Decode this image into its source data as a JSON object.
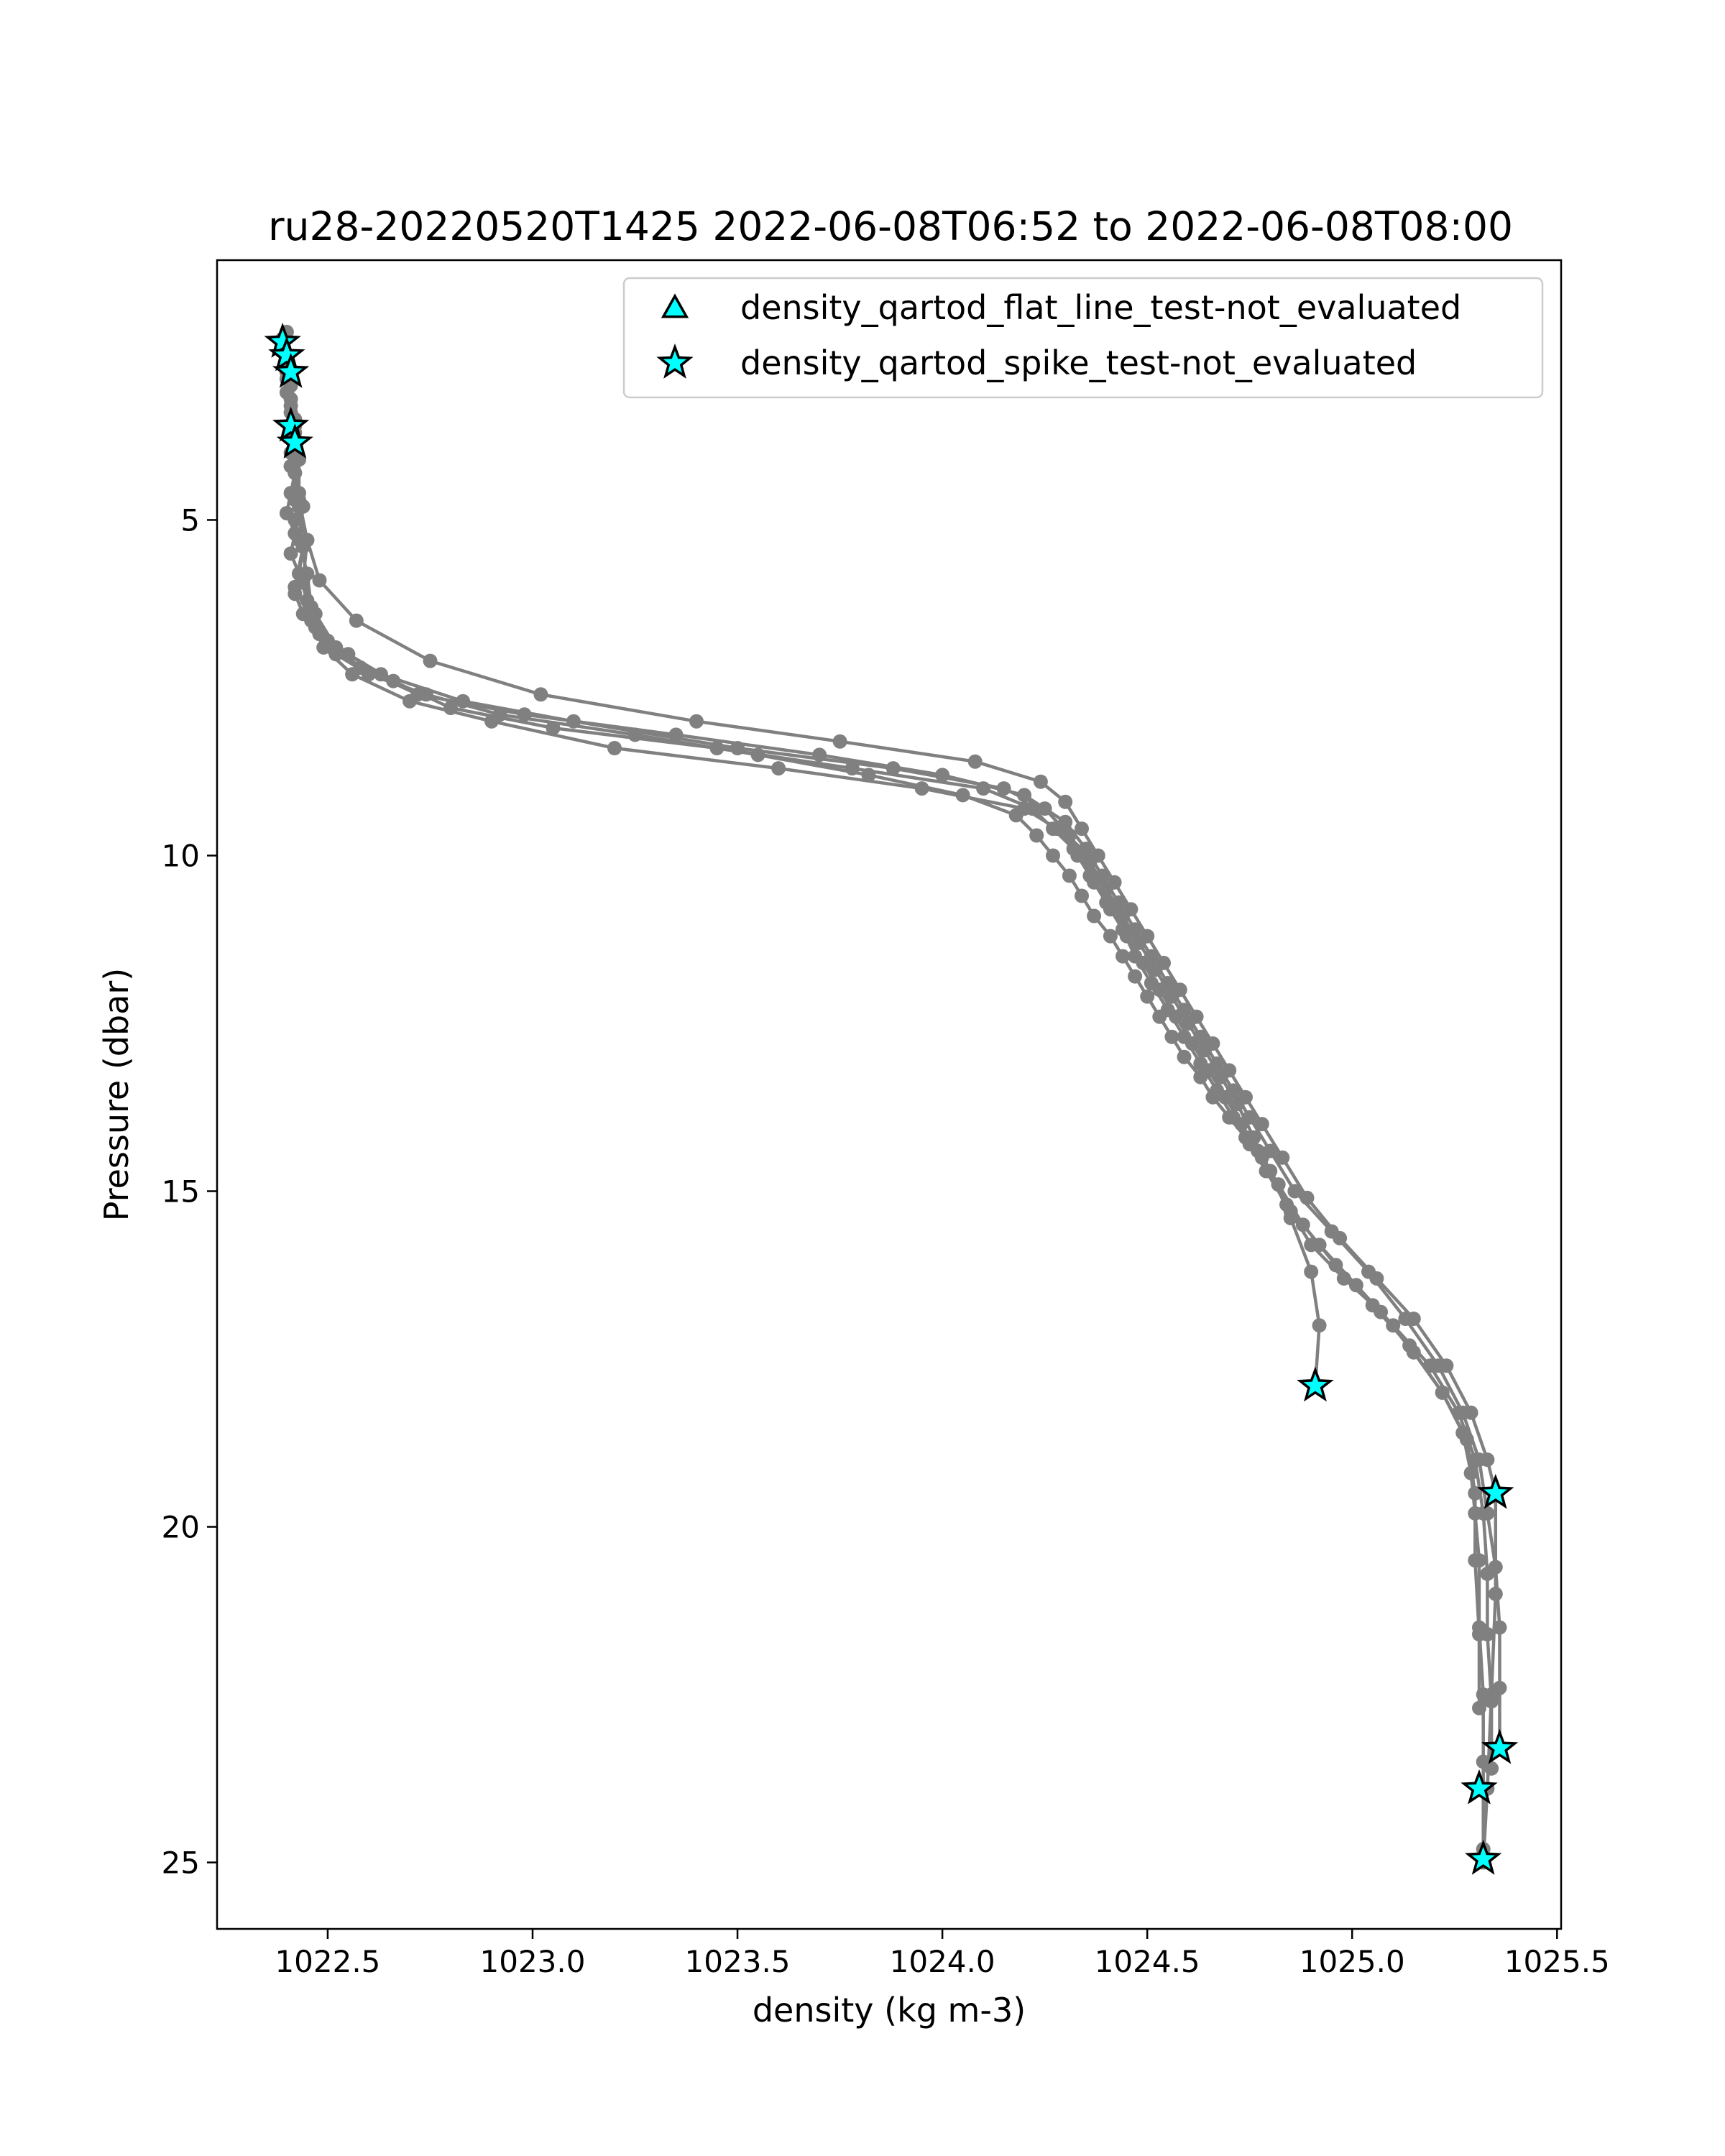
{
  "chart_data": {
    "type": "scatter",
    "title": "ru28-20220520T1425 2022-06-08T06:52 to 2022-06-08T08:00",
    "xlabel": "density (kg m-3)",
    "ylabel": "Pressure (dbar)",
    "xlim": [
      1022.23,
      1025.51
    ],
    "ylim": [
      25.99,
      1.13
    ],
    "y_inverted": true,
    "xticks": [
      1022.5,
      1023.0,
      1023.5,
      1024.0,
      1024.5,
      1025.0,
      1025.5
    ],
    "xtick_labels": [
      "1022.5",
      "1023.0",
      "1023.5",
      "1024.0",
      "1024.5",
      "1025.0",
      "1025.5"
    ],
    "yticks": [
      5,
      10,
      15,
      20,
      25
    ],
    "ytick_labels": [
      "5",
      "10",
      "15",
      "20",
      "25"
    ],
    "grid": false,
    "legend_position": "top-right",
    "profile_color": "#808080",
    "marker_fill": "#00ffff",
    "marker_edge": "#000000",
    "profiles": [
      {
        "x": [
          1022.39,
          1022.4,
          1022.4,
          1022.41,
          1022.41,
          1022.41,
          1022.42,
          1022.41,
          1022.4,
          1022.42,
          1022.41,
          1022.43,
          1022.42,
          1022.44,
          1022.48,
          1022.52,
          1022.6,
          1022.74,
          1022.92,
          1023.25,
          1023.55,
          1023.82,
          1024.05,
          1024.18,
          1024.23,
          1024.27,
          1024.31,
          1024.34,
          1024.37,
          1024.41,
          1024.44,
          1024.47,
          1024.5,
          1024.53,
          1024.56,
          1024.59,
          1024.63,
          1024.66,
          1024.7,
          1024.74,
          1024.78,
          1024.82,
          1024.85,
          1024.9,
          1024.98,
          1025.07,
          1025.15,
          1025.22,
          1025.27,
          1025.29,
          1025.3,
          1025.31,
          1025.31,
          1025.32,
          1025.32,
          1025.32
        ],
        "y": [
          2.4,
          2.8,
          3.1,
          3.4,
          3.7,
          4.0,
          4.3,
          4.6,
          4.9,
          5.2,
          5.5,
          5.8,
          6.1,
          6.4,
          6.7,
          7.0,
          7.3,
          7.6,
          7.9,
          8.2,
          8.5,
          8.8,
          9.1,
          9.4,
          9.7,
          10.0,
          10.3,
          10.6,
          10.9,
          11.2,
          11.5,
          11.8,
          12.1,
          12.4,
          12.7,
          13.0,
          13.3,
          13.6,
          13.9,
          14.2,
          14.5,
          14.9,
          15.3,
          15.8,
          16.3,
          16.8,
          17.4,
          18.0,
          18.6,
          19.2,
          19.8,
          20.5,
          21.5,
          22.5,
          23.5,
          24.8
        ]
      },
      {
        "x": [
          1022.39,
          1022.4,
          1022.41,
          1022.42,
          1022.41,
          1022.43,
          1022.42,
          1022.44,
          1022.43,
          1022.45,
          1022.47,
          1022.55,
          1022.66,
          1022.8,
          1023.05,
          1023.45,
          1023.78,
          1024.1,
          1024.22,
          1024.27,
          1024.32,
          1024.36,
          1024.4,
          1024.44,
          1024.47,
          1024.51,
          1024.55,
          1024.59,
          1024.63,
          1024.67,
          1024.71,
          1024.75,
          1024.79,
          1024.84,
          1024.92,
          1025.01,
          1025.1,
          1025.19,
          1025.26,
          1025.3,
          1025.32,
          1025.33,
          1025.33,
          1025.34,
          1025.34
        ],
        "y": [
          2.3,
          2.9,
          3.3,
          3.8,
          4.2,
          4.6,
          5.0,
          5.4,
          5.8,
          6.2,
          6.6,
          7.0,
          7.4,
          7.8,
          8.1,
          8.4,
          8.7,
          9.0,
          9.3,
          9.6,
          9.9,
          10.3,
          10.7,
          11.1,
          11.5,
          11.9,
          12.3,
          12.7,
          13.1,
          13.5,
          13.9,
          14.3,
          14.7,
          15.2,
          15.8,
          16.4,
          17.0,
          17.6,
          18.3,
          19.0,
          19.8,
          20.7,
          21.6,
          22.6,
          23.6
        ]
      },
      {
        "x": [
          1022.4,
          1022.41,
          1022.42,
          1022.42,
          1022.44,
          1022.43,
          1022.45,
          1022.46,
          1022.5,
          1022.58,
          1022.72,
          1022.98,
          1023.35,
          1023.7,
          1024.0,
          1024.2,
          1024.3,
          1024.35,
          1024.39,
          1024.43,
          1024.47,
          1024.51,
          1024.55,
          1024.59,
          1024.63,
          1024.67,
          1024.71,
          1024.75,
          1024.8,
          1024.86,
          1024.95,
          1025.04,
          1025.13,
          1025.21,
          1025.27,
          1025.31,
          1025.33,
          1025.35,
          1025.36,
          1025.36,
          1025.36
        ],
        "y": [
          2.6,
          3.2,
          3.7,
          4.3,
          4.8,
          5.3,
          5.8,
          6.3,
          6.8,
          7.2,
          7.6,
          7.9,
          8.2,
          8.5,
          8.8,
          9.1,
          9.5,
          9.9,
          10.3,
          10.7,
          11.1,
          11.5,
          11.9,
          12.3,
          12.7,
          13.1,
          13.5,
          13.9,
          14.4,
          15.0,
          15.6,
          16.2,
          16.9,
          17.6,
          18.3,
          19.0,
          19.8,
          20.6,
          21.5,
          22.4,
          23.3
        ]
      },
      {
        "x": [
          1022.41,
          1022.42,
          1022.41,
          1022.43,
          1022.44,
          1022.42,
          1022.46,
          1022.49,
          1022.56,
          1022.7,
          1022.9,
          1023.2,
          1023.6,
          1023.95,
          1024.2,
          1024.28,
          1024.33,
          1024.37,
          1024.41,
          1024.45,
          1024.49,
          1024.53,
          1024.57,
          1024.61,
          1024.65,
          1024.69,
          1024.73,
          1024.77,
          1024.82,
          1024.88,
          1024.96,
          1025.05,
          1025.14,
          1025.22,
          1025.28,
          1025.3,
          1025.3,
          1025.31,
          1025.31
        ],
        "y": [
          3.0,
          3.6,
          4.2,
          4.8,
          5.4,
          6.0,
          6.5,
          6.9,
          7.3,
          7.7,
          8.0,
          8.4,
          8.7,
          9.0,
          9.3,
          9.6,
          10.0,
          10.4,
          10.8,
          11.2,
          11.6,
          12.0,
          12.4,
          12.8,
          13.2,
          13.6,
          14.0,
          14.4,
          14.9,
          15.5,
          16.1,
          16.7,
          17.3,
          18.0,
          18.7,
          19.5,
          20.5,
          21.6,
          22.7
        ]
      },
      {
        "x": [
          1022.42,
          1022.43,
          1022.42,
          1022.45,
          1022.44,
          1022.47,
          1022.52,
          1022.63,
          1022.83,
          1023.1,
          1023.5,
          1023.88,
          1024.15,
          1024.25,
          1024.31,
          1024.36,
          1024.4,
          1024.44,
          1024.48,
          1024.52,
          1024.56,
          1024.6,
          1024.64,
          1024.68,
          1024.72,
          1024.76,
          1024.8,
          1024.85,
          1024.9,
          1024.92,
          1024.91
        ],
        "y": [
          3.5,
          4.1,
          4.7,
          5.3,
          5.9,
          6.4,
          6.9,
          7.3,
          7.7,
          8.0,
          8.4,
          8.7,
          9.0,
          9.3,
          9.7,
          10.1,
          10.5,
          10.9,
          11.3,
          11.7,
          12.1,
          12.5,
          12.9,
          13.3,
          13.7,
          14.2,
          14.7,
          15.4,
          16.2,
          17.0,
          17.9
        ]
      },
      {
        "x": [
          1022.4,
          1022.41,
          1022.42,
          1022.43,
          1022.43,
          1022.45,
          1022.48,
          1022.57,
          1022.75,
          1023.02,
          1023.4,
          1023.75,
          1024.08,
          1024.24,
          1024.3,
          1024.34,
          1024.38,
          1024.42,
          1024.46,
          1024.5,
          1024.54,
          1024.58,
          1024.62,
          1024.66,
          1024.7,
          1024.74,
          1024.78,
          1024.83,
          1024.89,
          1024.97,
          1025.06,
          1025.15,
          1025.23,
          1025.29,
          1025.33,
          1025.35,
          1025.35,
          1025.34,
          1025.33,
          1025.32
        ],
        "y": [
          2.2,
          2.9,
          3.5,
          4.1,
          4.7,
          5.3,
          5.9,
          6.5,
          7.1,
          7.6,
          8.0,
          8.3,
          8.6,
          8.9,
          9.2,
          9.6,
          10.0,
          10.4,
          10.8,
          11.2,
          11.6,
          12.0,
          12.4,
          12.8,
          13.2,
          13.6,
          14.0,
          14.5,
          15.1,
          15.7,
          16.3,
          16.9,
          17.6,
          18.3,
          19.0,
          19.5,
          21.0,
          22.5,
          23.9,
          25.0
        ]
      }
    ],
    "series": [
      {
        "name": "density_qartod_flat_line_test-not_evaluated",
        "marker": "triangle",
        "x": [],
        "y": []
      },
      {
        "name": "density_qartod_spike_test-not_evaluated",
        "marker": "star",
        "x": [
          1022.39,
          1022.4,
          1022.41,
          1022.41,
          1022.42,
          1024.91,
          1025.35,
          1025.36,
          1025.31,
          1025.32
        ],
        "y": [
          2.35,
          2.55,
          2.8,
          3.6,
          3.85,
          17.9,
          19.5,
          23.3,
          23.9,
          24.95
        ]
      }
    ]
  }
}
